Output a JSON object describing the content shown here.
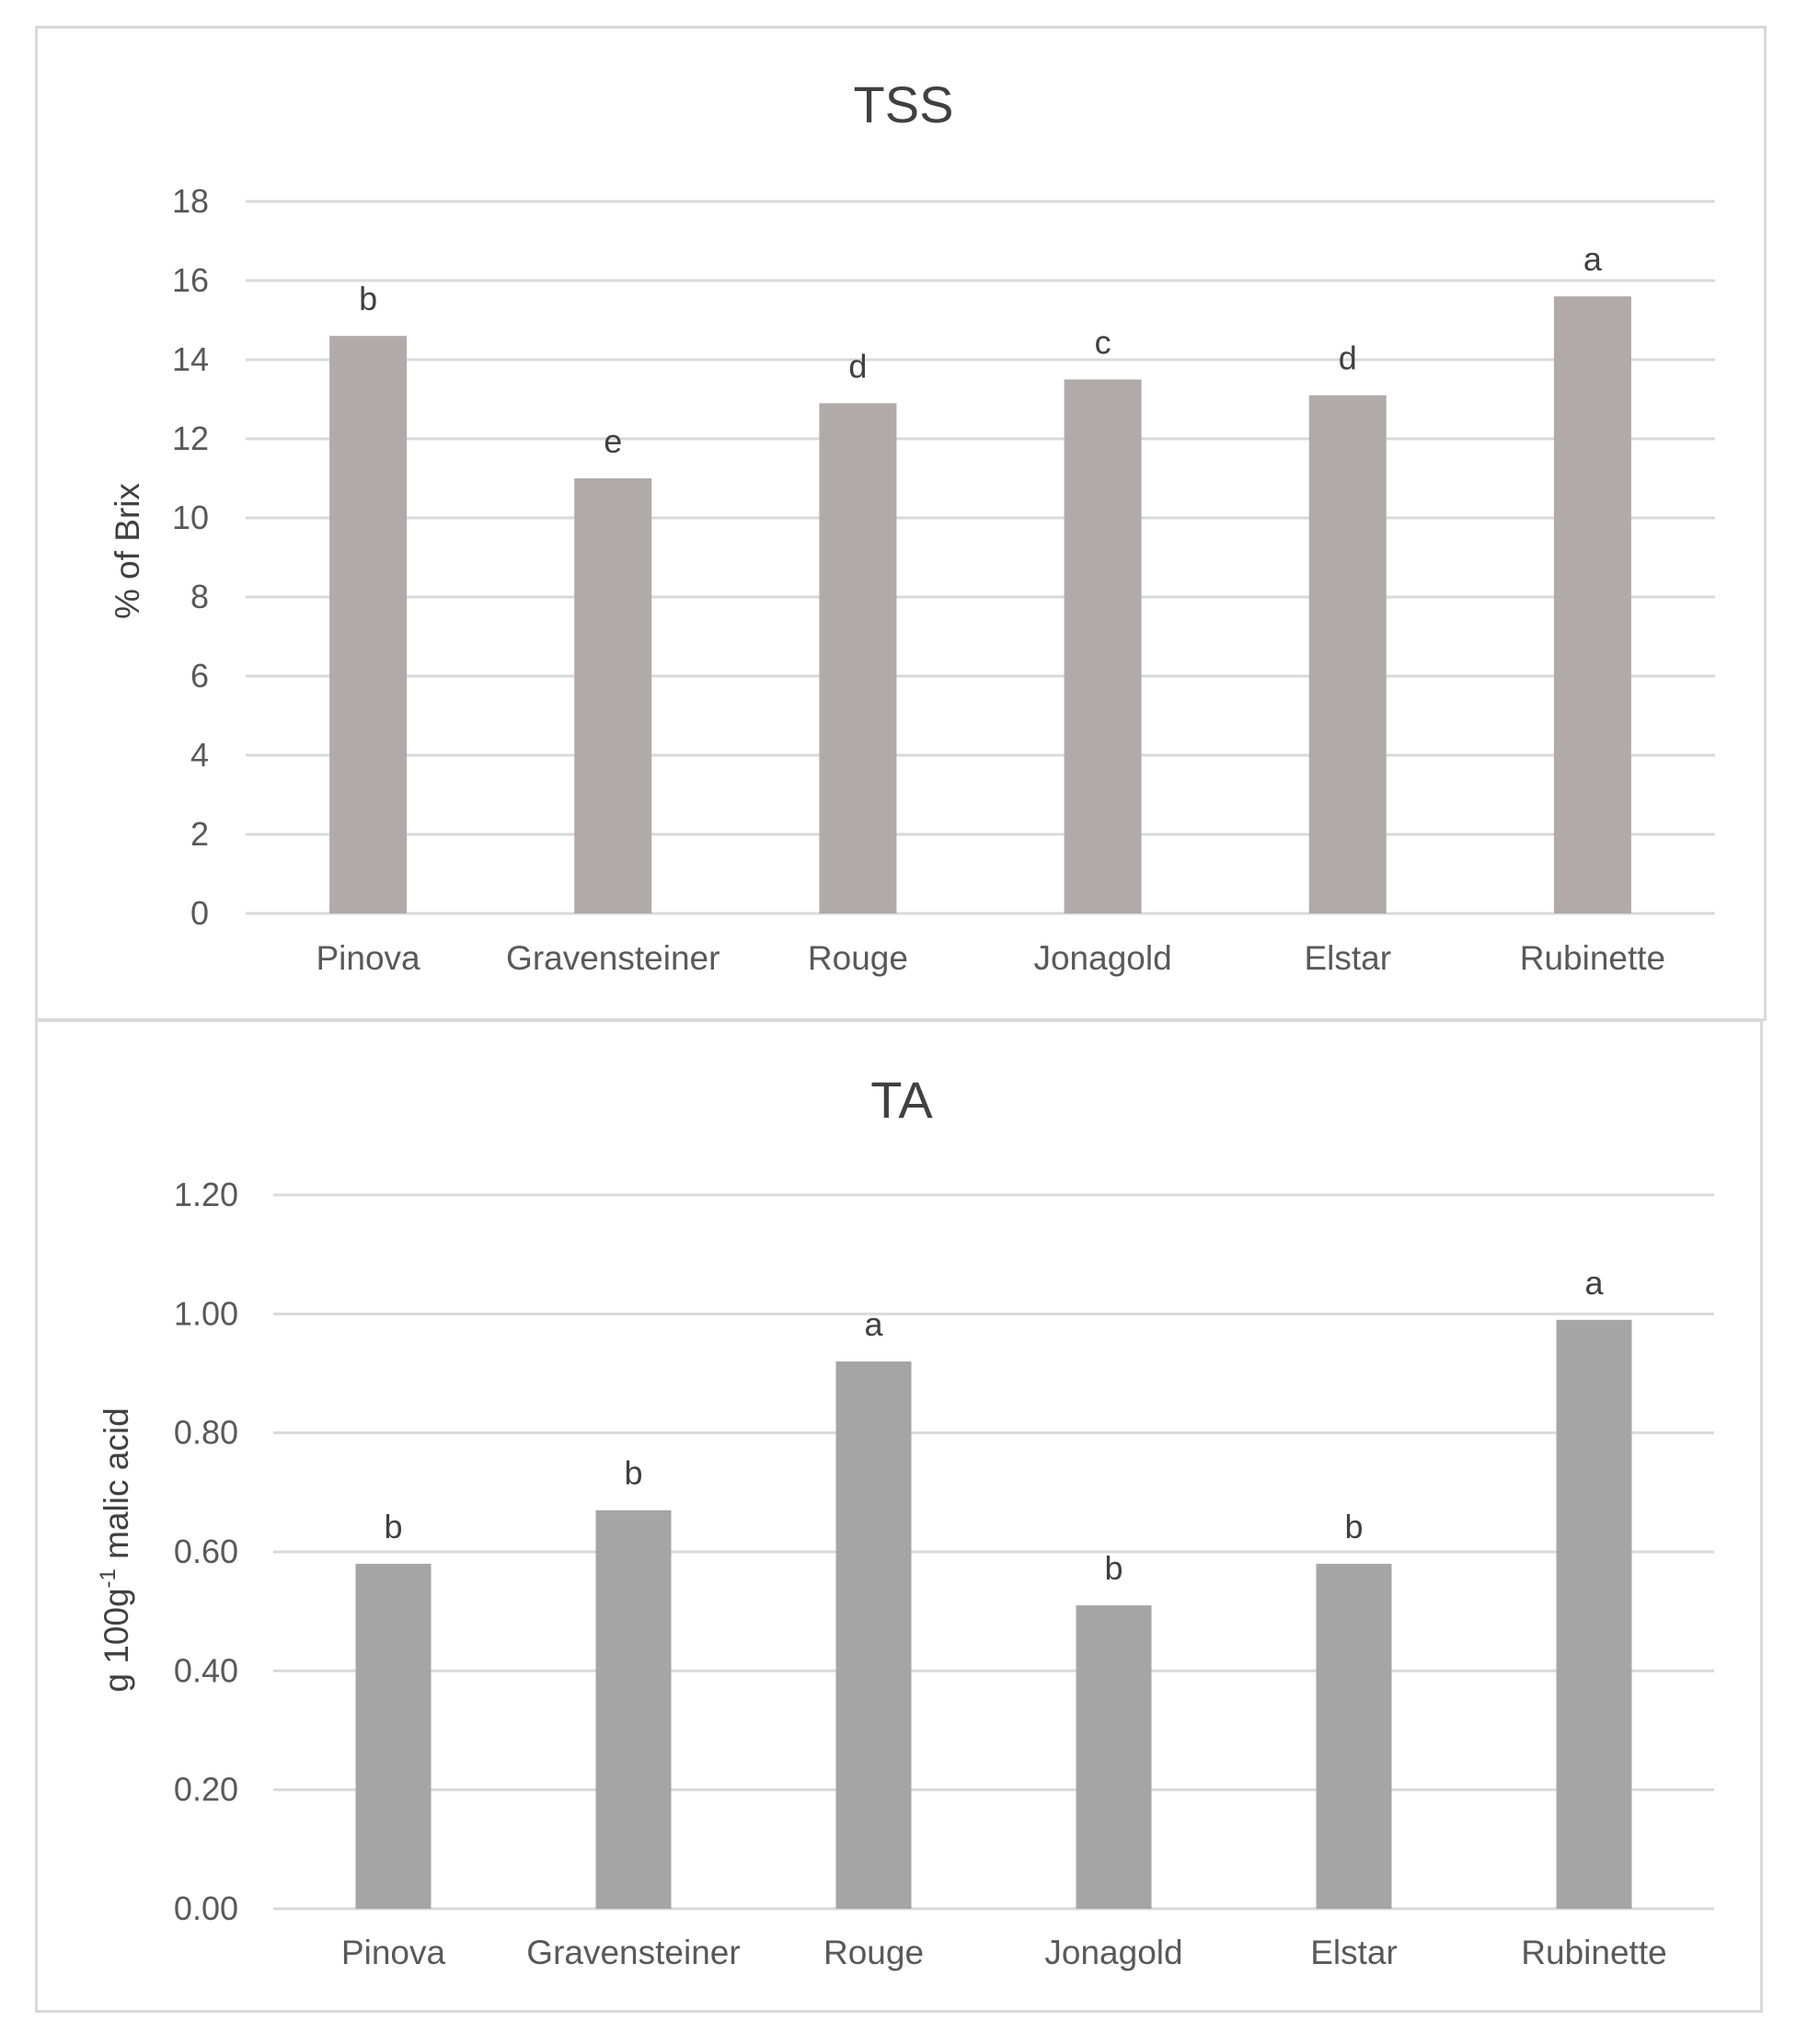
{
  "chart_data": [
    {
      "type": "bar",
      "title": "TSS",
      "ylabel": "% of Brix",
      "xlabel": "",
      "ylim": [
        0,
        18
      ],
      "yticks": [
        "0",
        "2",
        "4",
        "6",
        "8",
        "10",
        "12",
        "14",
        "16",
        "18"
      ],
      "categories": [
        "Pinova",
        "Gravensteiner",
        "Rouge",
        "Jonagold",
        "Elstar",
        "Rubinette"
      ],
      "values": [
        14.6,
        11.0,
        12.9,
        13.5,
        13.1,
        15.6
      ],
      "data_labels": [
        "b",
        "e",
        "d",
        "c",
        "d",
        "a"
      ],
      "grid": true,
      "bar_color": "#b0aaa8"
    },
    {
      "type": "bar",
      "title": "TA",
      "ylabel": "g 100g",
      "ylabel_superscript": "-1",
      "ylabel_suffix": " malic acid",
      "xlabel": "",
      "ylim": [
        0,
        1.2
      ],
      "yticks": [
        "0.00",
        "0.20",
        "0.40",
        "0.60",
        "0.80",
        "1.00",
        "1.20"
      ],
      "categories": [
        "Pinova",
        "Gravensteiner",
        "Rouge",
        "Jonagold",
        "Elstar",
        "Rubinette"
      ],
      "values": [
        0.58,
        0.67,
        0.92,
        0.51,
        0.58,
        0.99
      ],
      "data_labels": [
        "b",
        "b",
        "a",
        "b",
        "b",
        "a"
      ],
      "grid": true,
      "bar_color": "#a5a5a5"
    }
  ]
}
